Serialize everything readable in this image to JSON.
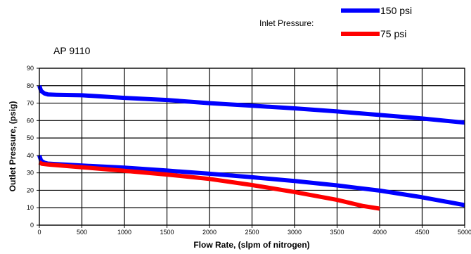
{
  "chart_data": {
    "type": "line",
    "subtitle": "AP 9110",
    "xlabel": "Flow Rate, (slpm of nitrogen)",
    "ylabel": "Outlet Pressure, (psig)",
    "xlim": [
      0,
      5000
    ],
    "ylim": [
      0,
      90
    ],
    "xticks": [
      0,
      500,
      1000,
      1500,
      2000,
      2500,
      3000,
      3500,
      4000,
      4500,
      5000
    ],
    "yticks": [
      0,
      10,
      20,
      30,
      40,
      50,
      60,
      70,
      80,
      90
    ],
    "grid": true,
    "legend": {
      "title": "Inlet Pressure:",
      "placement": "top-right"
    },
    "series": [
      {
        "name": "150 psi",
        "color": "#0000ff",
        "points": [
          [
            0,
            80
          ],
          [
            20,
            77
          ],
          [
            60,
            75.5
          ],
          [
            100,
            75
          ],
          [
            200,
            74.8
          ],
          [
            500,
            74.5
          ],
          [
            1000,
            73
          ],
          [
            1500,
            71.8
          ],
          [
            2000,
            70
          ],
          [
            2500,
            68.5
          ],
          [
            3000,
            67
          ],
          [
            3500,
            65.2
          ],
          [
            4000,
            63.2
          ],
          [
            4500,
            61.2
          ],
          [
            5000,
            58.8
          ]
        ]
      },
      {
        "name": "150 psi",
        "color": "#0000ff",
        "points": [
          [
            0,
            40
          ],
          [
            20,
            37
          ],
          [
            60,
            35.8
          ],
          [
            100,
            35.3
          ],
          [
            200,
            35
          ],
          [
            500,
            34.2
          ],
          [
            1000,
            33
          ],
          [
            1500,
            31.3
          ],
          [
            2000,
            29.5
          ],
          [
            2500,
            27.5
          ],
          [
            3000,
            25.3
          ],
          [
            3500,
            22.8
          ],
          [
            4000,
            19.8
          ],
          [
            4500,
            16
          ],
          [
            5000,
            11.5
          ]
        ]
      },
      {
        "name": "75 psi",
        "color": "#ff0000",
        "points": [
          [
            0,
            36
          ],
          [
            30,
            35.2
          ],
          [
            100,
            34.8
          ],
          [
            500,
            33.2
          ],
          [
            1000,
            31.2
          ],
          [
            1500,
            29
          ],
          [
            2000,
            26.5
          ],
          [
            2500,
            23
          ],
          [
            3000,
            19
          ],
          [
            3500,
            14.5
          ],
          [
            3800,
            11
          ],
          [
            4000,
            9.5
          ]
        ]
      }
    ]
  }
}
